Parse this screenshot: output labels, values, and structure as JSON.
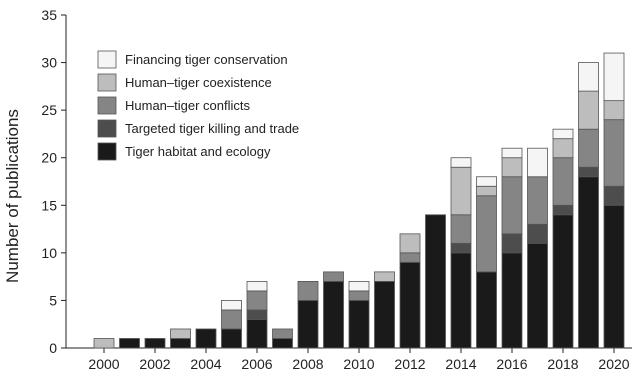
{
  "chart_data": {
    "type": "bar",
    "stacked": true,
    "title": "",
    "xlabel": "",
    "ylabel": "Number of publications",
    "ylim": [
      0,
      35
    ],
    "yticks": [
      0,
      5,
      10,
      15,
      20,
      25,
      30,
      35
    ],
    "x": [
      2000,
      2001,
      2002,
      2003,
      2004,
      2005,
      2006,
      2007,
      2008,
      2009,
      2010,
      2011,
      2012,
      2013,
      2014,
      2015,
      2016,
      2017,
      2018,
      2019,
      2020
    ],
    "xtick_labels": [
      "2000",
      "2002",
      "2004",
      "2006",
      "2008",
      "2010",
      "2012",
      "2014",
      "2016",
      "2018",
      "2020"
    ],
    "grid": false,
    "legend_position": "top-left",
    "legend_order": [
      4,
      3,
      2,
      1,
      0
    ],
    "series": [
      {
        "name": "Tiger habitat and ecology",
        "color": "#1a1a1a",
        "values": [
          0,
          1,
          1,
          1,
          2,
          2,
          3,
          1,
          5,
          7,
          5,
          7,
          9,
          14,
          10,
          8,
          10,
          11,
          14,
          18,
          15
        ]
      },
      {
        "name": "Targeted tiger killing and trade",
        "color": "#4d4d4d",
        "values": [
          0,
          0,
          0,
          0,
          0,
          0,
          1,
          0,
          0,
          0,
          0,
          0,
          0,
          0,
          1,
          0,
          2,
          2,
          1,
          1,
          2
        ]
      },
      {
        "name": "Human–tiger conflicts",
        "color": "#858585",
        "values": [
          0,
          0,
          0,
          0,
          0,
          2,
          2,
          1,
          2,
          1,
          1,
          0,
          1,
          0,
          3,
          8,
          6,
          5,
          5,
          4,
          7
        ]
      },
      {
        "name": "Human–tiger coexistence",
        "color": "#bdbdbd",
        "values": [
          1,
          0,
          0,
          1,
          0,
          0,
          0,
          0,
          0,
          0,
          0,
          1,
          2,
          0,
          5,
          1,
          2,
          0,
          2,
          4,
          2
        ]
      },
      {
        "name": "Financing tiger conservation",
        "color": "#f5f5f5",
        "values": [
          0,
          0,
          0,
          0,
          0,
          1,
          1,
          0,
          0,
          0,
          1,
          0,
          0,
          0,
          1,
          1,
          1,
          3,
          1,
          3,
          5
        ]
      }
    ]
  }
}
